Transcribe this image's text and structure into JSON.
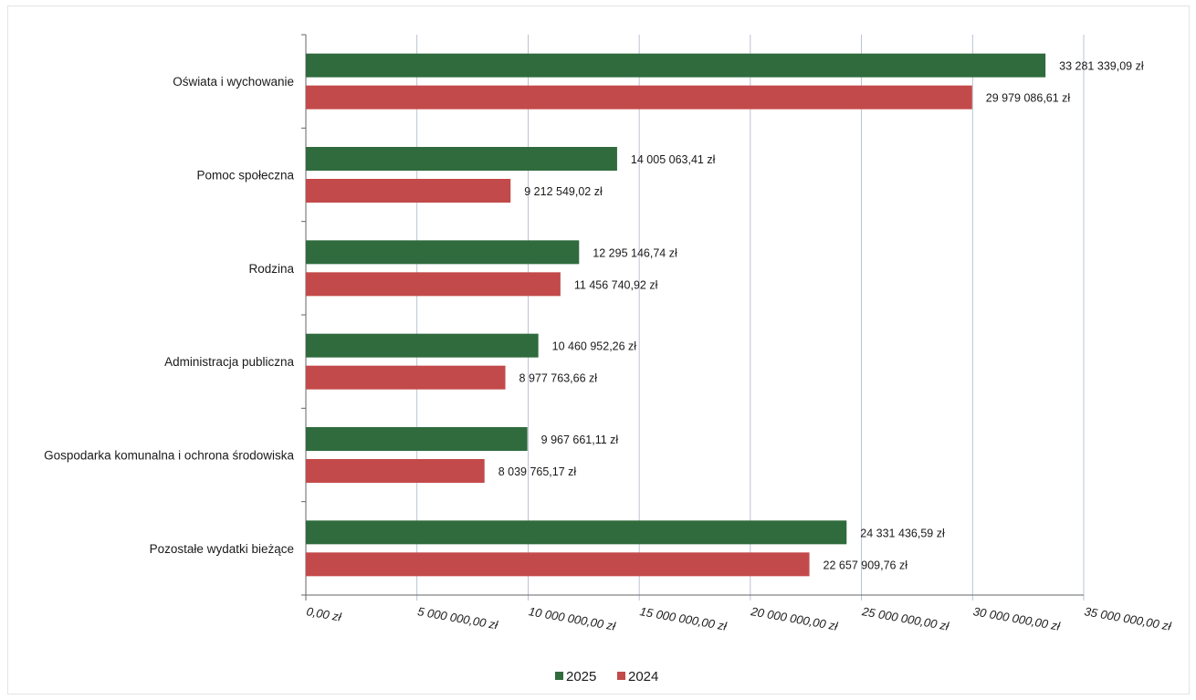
{
  "chart_data": {
    "type": "bar",
    "orientation": "horizontal",
    "categories": [
      "Oświata i wychowanie",
      "Pomoc społeczna",
      "Rodzina",
      "Administracja publiczna",
      "Gospodarka komunalna i ochrona środowiska",
      "Pozostałe wydatki bieżące"
    ],
    "series": [
      {
        "name": "2025",
        "color": "#2f6b3d",
        "values": [
          33281339.09,
          14005063.41,
          12295146.74,
          10460952.26,
          9967661.11,
          24331436.59
        ],
        "labels": [
          "33 281 339,09 zł",
          "14 005 063,41 zł",
          "12 295 146,74 zł",
          "10 460 952,26 zł",
          "9 967 661,11 zł",
          "24 331 436,59 zł"
        ]
      },
      {
        "name": "2024",
        "color": "#c34a4a",
        "values": [
          29979086.61,
          9212549.02,
          11456740.92,
          8977763.66,
          8039765.17,
          22657909.76
        ],
        "labels": [
          "29 979 086,61 zł",
          "9 212 549,02 zł",
          "11 456 740,92 zł",
          "8 977 763,66 zł",
          "8 039 765,17 zł",
          "22 657 909,76 zł"
        ]
      }
    ],
    "xlim": [
      0,
      35000000
    ],
    "xticks": [
      0,
      5000000,
      10000000,
      15000000,
      20000000,
      25000000,
      30000000,
      35000000
    ],
    "xtick_labels": [
      "0,00 zł",
      "5 000 000,00 zł",
      "10 000 000,00 zł",
      "15 000 000,00 zł",
      "20 000 000,00 zł",
      "25 000 000,00 zł",
      "30 000 000,00 zł",
      "35 000 000,00 zł"
    ],
    "grid": true,
    "legend_position": "bottom",
    "title": "",
    "xlabel": "",
    "ylabel": ""
  }
}
